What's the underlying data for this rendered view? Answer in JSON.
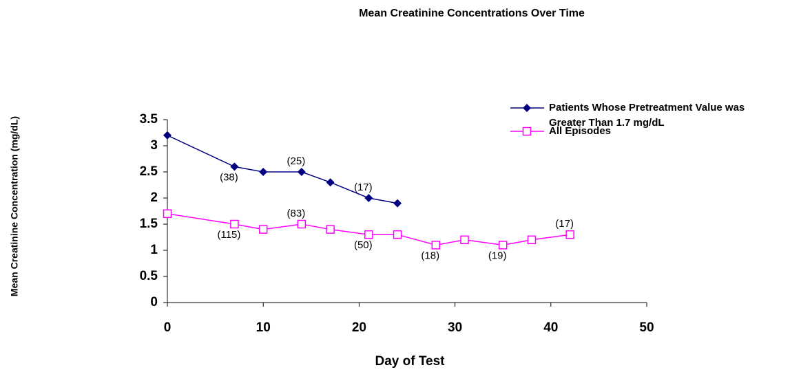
{
  "chart_data": {
    "type": "line",
    "title": "Mean Creatinine Concentrations Over Time",
    "x_label": "Day of Test",
    "y_label": "Mean Creatinine Concentration (mg/dL)",
    "xlim": [
      0,
      50
    ],
    "xticks": [
      0,
      10,
      20,
      30,
      40,
      50
    ],
    "ylim": [
      0,
      3.5
    ],
    "yticks": [
      0,
      0.5,
      1,
      1.5,
      2,
      2.5,
      3,
      3.5
    ],
    "legend": "upper right",
    "series": [
      {
        "name": "Patients Whose Pretreatment Value was Greater Than 1.7 mg/dL",
        "color": "#000080",
        "marker": "diamond",
        "x": [
          0,
          7,
          10,
          14,
          17,
          21,
          24
        ],
        "values": [
          3.2,
          2.6,
          2.5,
          2.5,
          2.3,
          2.0,
          1.9
        ],
        "point_labels": [
          null,
          "(38)",
          null,
          "(25)",
          null,
          "(17)",
          null
        ]
      },
      {
        "name": "All Episodes",
        "color": "#ff00ff",
        "marker": "open-square",
        "x": [
          0,
          7,
          10,
          14,
          17,
          21,
          24,
          28,
          31,
          35,
          38,
          42
        ],
        "values": [
          1.7,
          1.5,
          1.4,
          1.5,
          1.4,
          1.3,
          1.3,
          1.1,
          1.2,
          1.1,
          1.2,
          1.3
        ],
        "point_labels": [
          null,
          "(115)",
          null,
          "(83)",
          null,
          "(50)",
          null,
          "(18)",
          null,
          "(19)",
          null,
          "(17)"
        ]
      }
    ]
  }
}
